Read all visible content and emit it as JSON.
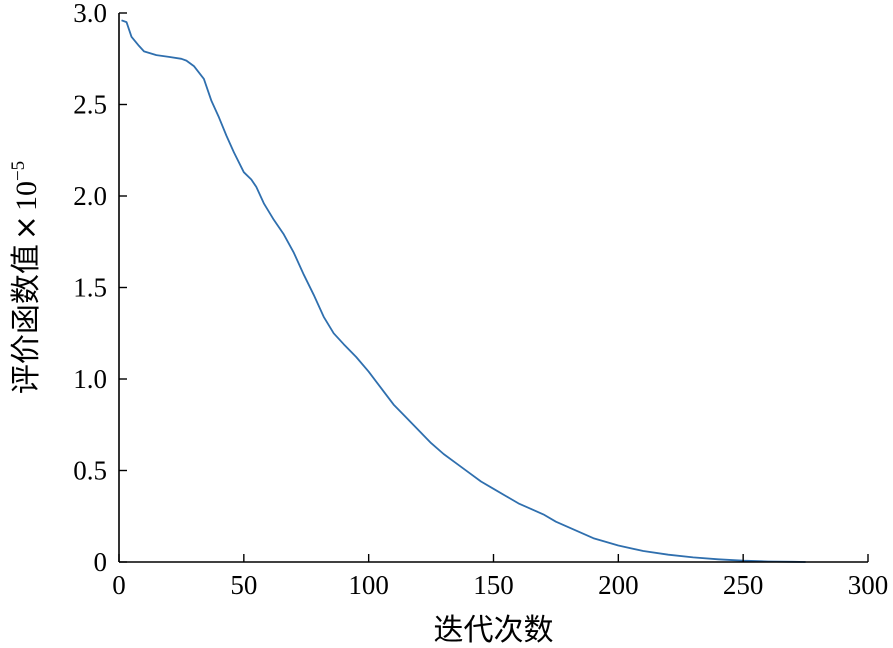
{
  "chart_data": {
    "type": "line",
    "title": "",
    "xlabel": "迭代次数",
    "ylabel": "评价函数值 × 10⁻⁵",
    "ylabel_main": "评价函数值",
    "ylabel_times": "×",
    "ylabel_base": "10",
    "ylabel_exp": "−5",
    "xlim": [
      0,
      300
    ],
    "ylim": [
      0,
      3.0
    ],
    "xticks": [
      0,
      50,
      100,
      150,
      200,
      250,
      300
    ],
    "xtick_labels": [
      "0",
      "50",
      "100",
      "150",
      "200",
      "250",
      "300"
    ],
    "yticks": [
      0,
      0.5,
      1.0,
      1.5,
      2.0,
      2.5,
      3.0
    ],
    "ytick_labels": [
      "0",
      "0.5",
      "1.0",
      "1.5",
      "2.0",
      "2.5",
      "3.0"
    ],
    "grid": false,
    "legend": "none",
    "series": [
      {
        "color": "#2f6fae",
        "x": [
          1,
          3,
          5,
          8,
          10,
          15,
          20,
          25,
          27,
          30,
          34,
          37,
          40,
          43,
          46,
          50,
          53,
          55,
          58,
          62,
          66,
          70,
          74,
          78,
          82,
          86,
          90,
          95,
          100,
          105,
          110,
          115,
          120,
          125,
          130,
          135,
          140,
          145,
          150,
          155,
          160,
          165,
          170,
          175,
          180,
          185,
          190,
          195,
          200,
          210,
          220,
          230,
          240,
          250,
          260,
          270,
          275
        ],
        "y": [
          2.96,
          2.95,
          2.87,
          2.82,
          2.79,
          2.77,
          2.76,
          2.75,
          2.74,
          2.71,
          2.64,
          2.52,
          2.43,
          2.33,
          2.24,
          2.13,
          2.09,
          2.05,
          1.96,
          1.87,
          1.79,
          1.69,
          1.57,
          1.46,
          1.34,
          1.25,
          1.19,
          1.12,
          1.04,
          0.95,
          0.86,
          0.79,
          0.72,
          0.65,
          0.59,
          0.54,
          0.49,
          0.44,
          0.4,
          0.36,
          0.32,
          0.29,
          0.26,
          0.22,
          0.19,
          0.16,
          0.13,
          0.11,
          0.09,
          0.06,
          0.04,
          0.025,
          0.015,
          0.007,
          0.003,
          0.001,
          0.0
        ]
      }
    ]
  }
}
